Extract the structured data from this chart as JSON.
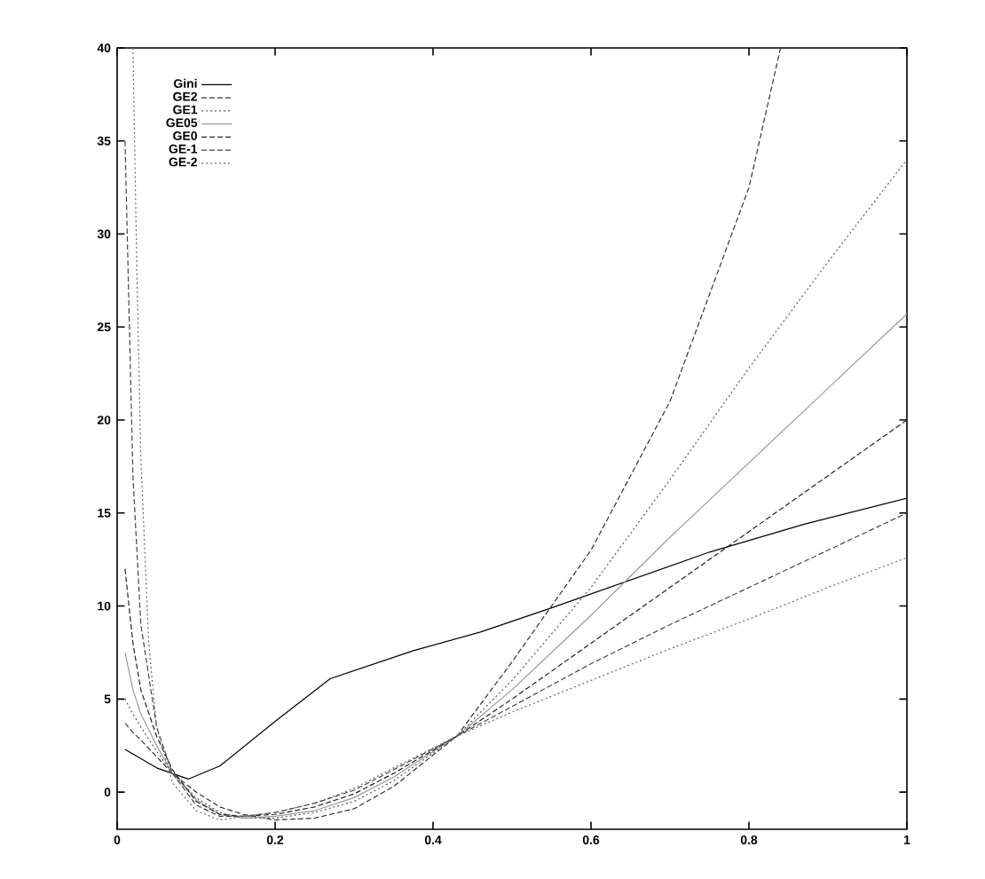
{
  "chart_data": {
    "type": "line",
    "xlim": [
      0,
      1
    ],
    "ylim": [
      -2,
      40
    ],
    "xticks": [
      0,
      0.2,
      0.4,
      0.6,
      0.8,
      1
    ],
    "yticks": [
      0,
      5,
      10,
      15,
      20,
      25,
      30,
      35,
      40
    ],
    "legend": "top left",
    "series": [
      {
        "name": "Gini",
        "color": "#000000",
        "line_style": "solid",
        "x": [
          0.01,
          0.05,
          0.09,
          0.13,
          0.2,
          0.27,
          0.375,
          0.46,
          0.55,
          0.65,
          0.75,
          0.87,
          1.0
        ],
        "values": [
          2.3,
          1.3,
          0.7,
          1.4,
          3.8,
          6.1,
          7.6,
          8.6,
          9.9,
          11.4,
          12.9,
          14.4,
          15.8
        ]
      },
      {
        "name": "GE2",
        "color": "#333333",
        "line_style": "dashed",
        "x": [
          0.01,
          0.02,
          0.03,
          0.05,
          0.07,
          0.1,
          0.13,
          0.16,
          0.2,
          0.25,
          0.3,
          0.35,
          0.43,
          0.5,
          0.6,
          0.7,
          0.8,
          0.84
        ],
        "values": [
          3.7,
          3.2,
          2.8,
          1.9,
          1.0,
          0.0,
          -0.8,
          -1.2,
          -1.5,
          -1.4,
          -0.9,
          0.3,
          3.0,
          7.0,
          13.0,
          21.0,
          32.5,
          40
        ]
      },
      {
        "name": "GE1",
        "color": "#555555",
        "line_style": "dotted",
        "x": [
          0.01,
          0.02,
          0.03,
          0.05,
          0.07,
          0.1,
          0.13,
          0.16,
          0.2,
          0.25,
          0.3,
          0.35,
          0.43,
          0.5,
          0.6,
          0.7,
          0.8,
          0.9,
          1.0
        ],
        "values": [
          5.0,
          4.2,
          3.5,
          2.2,
          1.0,
          -0.3,
          -1.1,
          -1.4,
          -1.4,
          -1.1,
          -0.5,
          0.6,
          3.0,
          6.0,
          11.0,
          16.8,
          22.8,
          28.5,
          34.0
        ]
      },
      {
        "name": "GE05",
        "color": "#999999",
        "line_style": "solid",
        "x": [
          0.01,
          0.02,
          0.03,
          0.05,
          0.07,
          0.1,
          0.13,
          0.16,
          0.2,
          0.25,
          0.3,
          0.35,
          0.43,
          0.5,
          0.6,
          0.7,
          0.8,
          0.9,
          1.0
        ],
        "values": [
          7.5,
          5.5,
          4.2,
          2.5,
          1.0,
          -0.4,
          -1.2,
          -1.4,
          -1.3,
          -1.0,
          -0.3,
          0.8,
          3.0,
          5.5,
          9.5,
          13.7,
          17.7,
          21.7,
          25.7
        ]
      },
      {
        "name": "GE0",
        "color": "#222222",
        "line_style": "dashed",
        "x": [
          0.01,
          0.02,
          0.03,
          0.05,
          0.07,
          0.1,
          0.13,
          0.16,
          0.2,
          0.25,
          0.3,
          0.35,
          0.43,
          0.5,
          0.6,
          0.7,
          0.8,
          0.9,
          1.0
        ],
        "values": [
          12,
          8,
          5.5,
          3.0,
          1.2,
          -0.5,
          -1.2,
          -1.3,
          -1.2,
          -0.8,
          -0.1,
          1.0,
          3.0,
          5.0,
          8.0,
          11.0,
          14.0,
          17.0,
          20.0
        ]
      },
      {
        "name": "GE-1",
        "color": "#444444",
        "line_style": "dashed",
        "x": [
          0.01,
          0.02,
          0.03,
          0.05,
          0.07,
          0.1,
          0.13,
          0.16,
          0.2,
          0.25,
          0.3,
          0.35,
          0.43,
          0.5,
          0.6,
          0.7,
          0.8,
          0.9,
          1.0
        ],
        "values": [
          35,
          17,
          9,
          3.5,
          1.0,
          -0.7,
          -1.3,
          -1.3,
          -1.1,
          -0.6,
          0.1,
          1.2,
          3.0,
          4.6,
          6.9,
          9.0,
          11.0,
          13.0,
          15.0
        ]
      },
      {
        "name": "GE-2",
        "color": "#666666",
        "line_style": "dotted",
        "x": [
          0.02,
          0.025,
          0.03,
          0.04,
          0.05,
          0.07,
          0.1,
          0.13,
          0.16,
          0.2,
          0.25,
          0.3,
          0.35,
          0.43,
          0.5,
          0.6,
          0.7,
          0.8,
          0.9,
          1.0
        ],
        "values": [
          40,
          28,
          18,
          8,
          3.5,
          0.5,
          -1.0,
          -1.5,
          -1.3,
          -1.1,
          -0.6,
          0.2,
          1.3,
          3.0,
          4.3,
          6.0,
          7.7,
          9.3,
          11.0,
          12.6
        ]
      }
    ]
  }
}
